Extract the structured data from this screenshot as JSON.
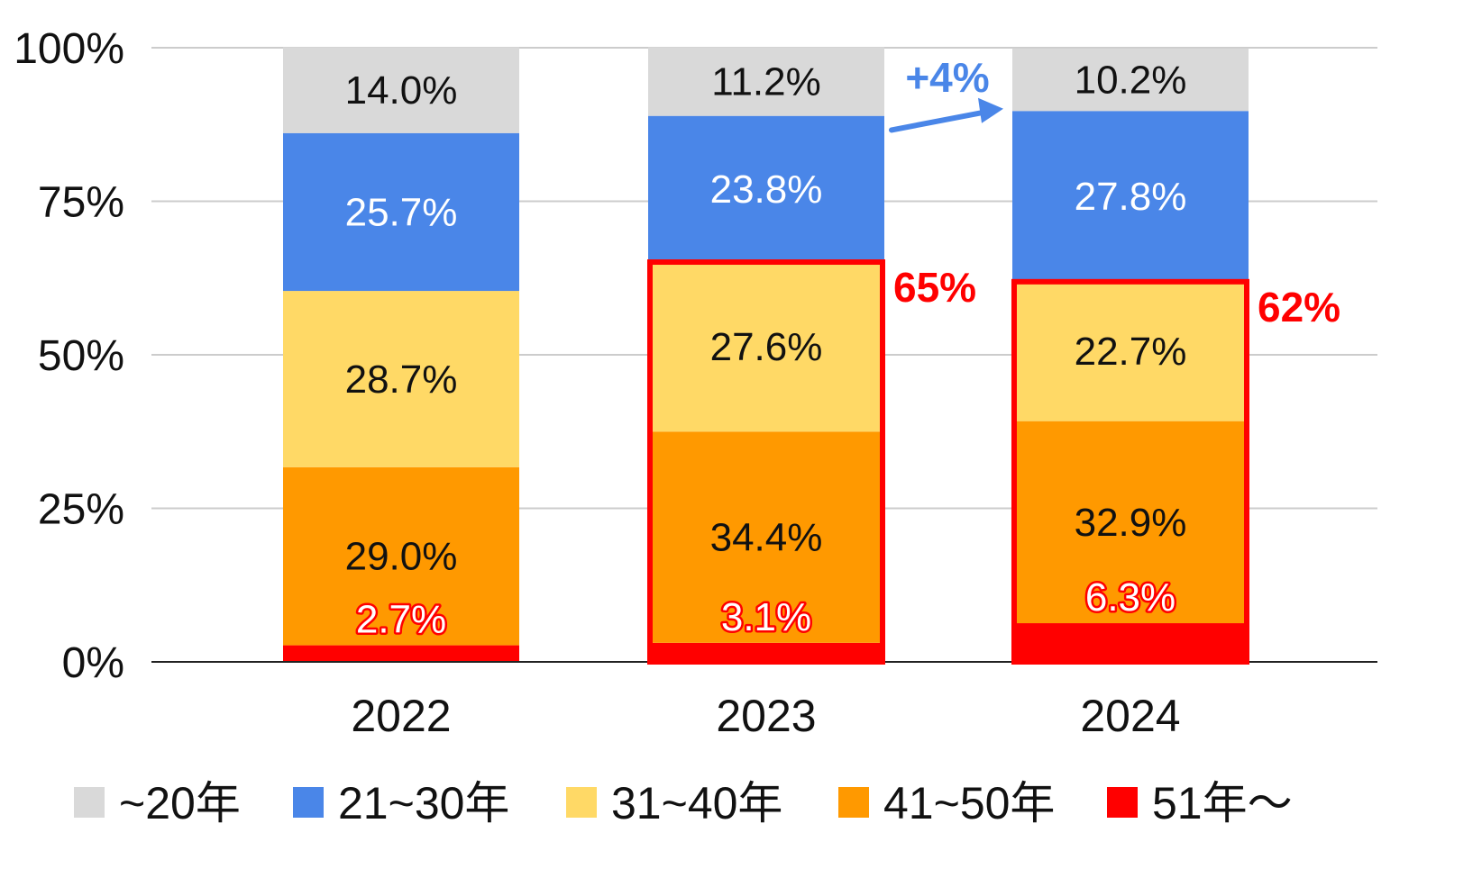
{
  "chart_data": {
    "type": "bar",
    "stacked": true,
    "percent": true,
    "categories": [
      "2022",
      "2023",
      "2024"
    ],
    "ylim": [
      0,
      100
    ],
    "yticks": [
      "0%",
      "25%",
      "50%",
      "75%",
      "100%"
    ],
    "grid": true,
    "legend_position": "bottom",
    "series": [
      {
        "name": "51年～",
        "color": "#ff0000",
        "values": [
          2.7,
          3.1,
          6.3
        ],
        "labels": [
          "2.7%",
          "3.1%",
          "6.3%"
        ],
        "label_color": "#ffffff",
        "label_outline": "#ff0000"
      },
      {
        "name": "41~50年",
        "color": "#ff9900",
        "values": [
          29.0,
          34.4,
          32.9
        ],
        "labels": [
          "29.0%",
          "34.4%",
          "32.9%"
        ],
        "label_color": "#111111"
      },
      {
        "name": "31~40年",
        "color": "#ffd966",
        "values": [
          28.7,
          27.6,
          22.7
        ],
        "labels": [
          "28.7%",
          "27.6%",
          "22.7%"
        ],
        "label_color": "#111111"
      },
      {
        "name": "21~30年",
        "color": "#4a86e8",
        "values": [
          25.7,
          23.8,
          27.8
        ],
        "labels": [
          "25.7%",
          "23.8%",
          "27.8%"
        ],
        "label_color": "#ffffff"
      },
      {
        "name": "~20年",
        "color": "#d9d9d9",
        "values": [
          14.0,
          11.2,
          10.2
        ],
        "labels": [
          "14.0%",
          "11.2%",
          "10.2%"
        ],
        "label_color": "#111111"
      }
    ],
    "legend_order": [
      "~20年",
      "21~30年",
      "31~40年",
      "41~50年",
      "51年～"
    ],
    "annotations": {
      "highlight_color": "#ff0000",
      "arrow_color": "#4a86e8",
      "highlights": [
        {
          "category": "2023",
          "from": 0,
          "to": 65.1,
          "label": "65%"
        },
        {
          "category": "2024",
          "from": 0,
          "to": 61.9,
          "label": "62%"
        }
      ],
      "arrow": {
        "from_category": "2023",
        "from_value": 86.3,
        "to_category": "2024",
        "to_value": 90.5,
        "label": "+4%"
      }
    }
  }
}
